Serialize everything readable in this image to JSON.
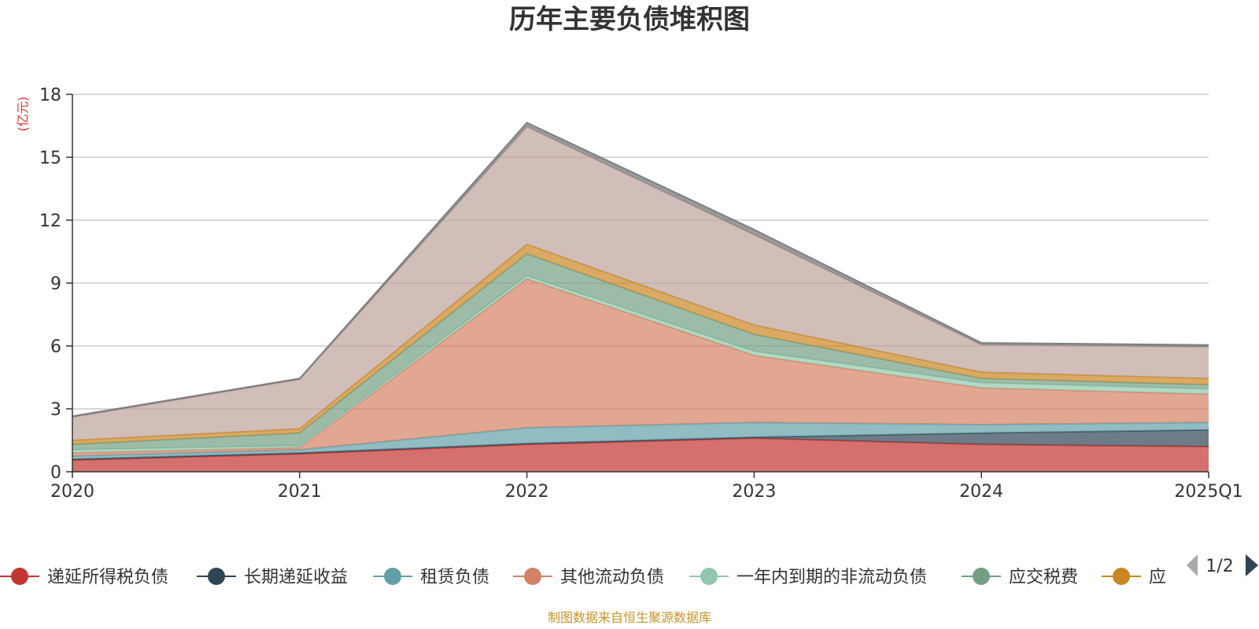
{
  "chart_data": {
    "type": "area",
    "stacked": true,
    "title": "历年主要负债堆积图",
    "unit_label": "(亿元)",
    "categories": [
      "2020",
      "2021",
      "2022",
      "2023",
      "2024",
      "2025Q1"
    ],
    "ylim": [
      0,
      18
    ],
    "yticks": [
      "0",
      "3",
      "6",
      "9",
      "12",
      "15",
      "18"
    ],
    "grid": true,
    "series": [
      {
        "name": "递延所得税负债",
        "color": "#c23531",
        "values": [
          0.55,
          0.85,
          1.3,
          1.6,
          1.3,
          1.2
        ]
      },
      {
        "name": "长期递延收益",
        "color": "#2f4554",
        "values": [
          0.05,
          0.05,
          0.05,
          0.05,
          0.55,
          0.8
        ]
      },
      {
        "name": "租赁负债",
        "color": "#61a0a8",
        "values": [
          0.15,
          0.15,
          0.75,
          0.7,
          0.4,
          0.35
        ]
      },
      {
        "name": "其他流动负债",
        "color": "#d48265",
        "values": [
          0.15,
          0.1,
          7.1,
          3.2,
          1.75,
          1.35
        ]
      },
      {
        "name": "一年内到期的非流动负债",
        "color": "#91c7ae",
        "values": [
          0.15,
          0.1,
          0.15,
          0.2,
          0.25,
          0.25
        ]
      },
      {
        "name": "应交税费",
        "color": "#749f83",
        "values": [
          0.25,
          0.6,
          1.05,
          0.8,
          0.2,
          0.2
        ]
      },
      {
        "name": "应",
        "color": "#ca8622",
        "values": [
          0.2,
          0.2,
          0.45,
          0.45,
          0.3,
          0.3
        ]
      },
      {
        "name": "",
        "color": "#bda29a",
        "values": [
          1.1,
          2.35,
          5.6,
          4.3,
          1.3,
          1.5
        ]
      },
      {
        "name": "",
        "color": "#6e7074",
        "values": [
          0.05,
          0.05,
          0.2,
          0.25,
          0.1,
          0.1
        ]
      }
    ],
    "legend": {
      "items": [
        "递延所得税负债",
        "长期递延收益",
        "租赁负债",
        "其他流动负债",
        "一年内到期的非流动负债",
        "应交税费",
        "应"
      ],
      "page": "1/2",
      "position": "bottom"
    }
  },
  "source_text": "制图数据来自恒生聚源数据库"
}
